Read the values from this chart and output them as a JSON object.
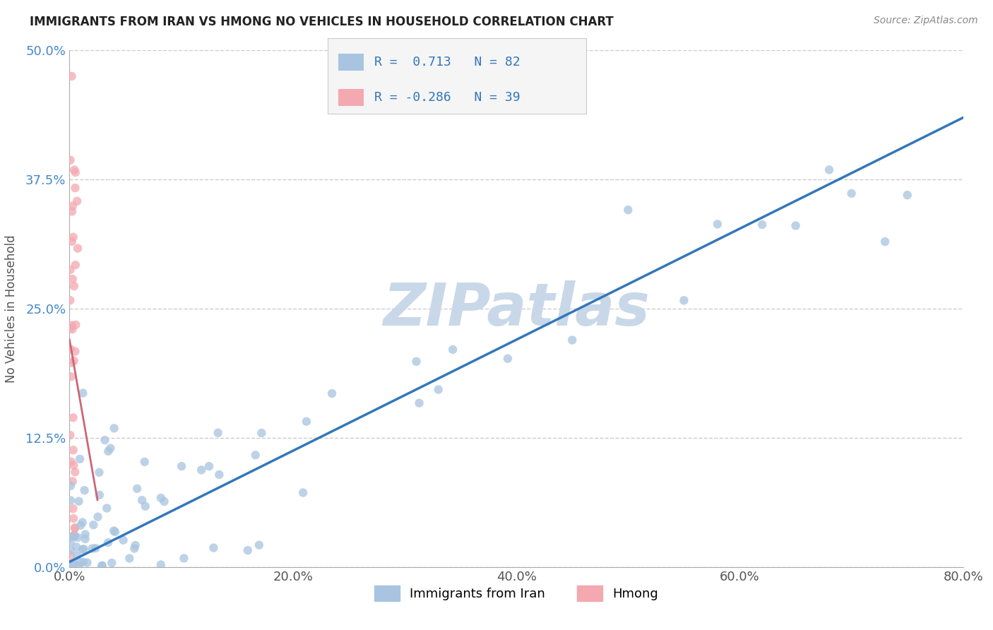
{
  "title": "IMMIGRANTS FROM IRAN VS HMONG NO VEHICLES IN HOUSEHOLD CORRELATION CHART",
  "source_text": "Source: ZipAtlas.com",
  "ylabel": "No Vehicles in Household",
  "xlim": [
    0.0,
    0.8
  ],
  "ylim": [
    0.0,
    0.5
  ],
  "xticks": [
    0.0,
    0.2,
    0.4,
    0.6,
    0.8
  ],
  "yticks": [
    0.0,
    0.125,
    0.25,
    0.375,
    0.5
  ],
  "xticklabels": [
    "0.0%",
    "20.0%",
    "40.0%",
    "60.0%",
    "80.0%"
  ],
  "yticklabels": [
    "0.0%",
    "12.5%",
    "25.0%",
    "37.5%",
    "50.0%"
  ],
  "grid_color": "#cccccc",
  "background_color": "#ffffff",
  "watermark": "ZIPatlas",
  "watermark_color": "#c8d8e8",
  "iran_color": "#a8c4e0",
  "hmong_color": "#f4a8b0",
  "iran_line_color": "#3377bb",
  "hmong_line_color": "#cc6677",
  "legend_label_iran": "Immigrants from Iran",
  "legend_label_hmong": "Hmong",
  "iran_R": 0.713,
  "iran_N": 82,
  "hmong_R": -0.286,
  "hmong_N": 39,
  "iran_regress_x0": 0.0,
  "iran_regress_x1": 0.8,
  "iran_regress_y0": 0.005,
  "iran_regress_y1": 0.435,
  "hmong_regress_x0": 0.0,
  "hmong_regress_x1": 0.025,
  "hmong_regress_y0": 0.22,
  "hmong_regress_y1": 0.065
}
